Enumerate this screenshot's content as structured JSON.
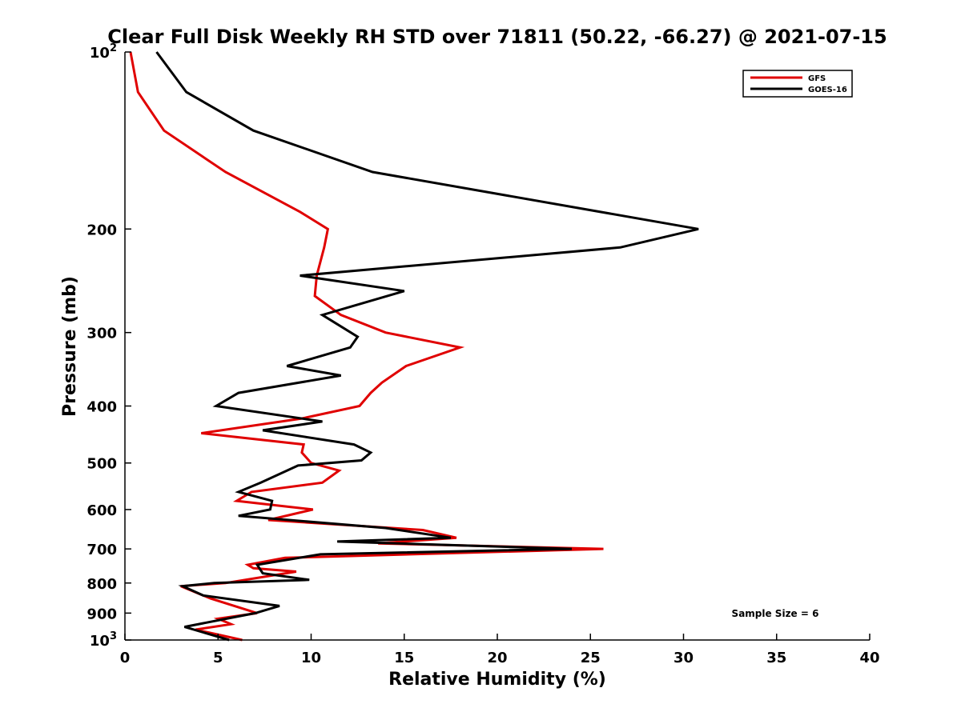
{
  "chart_data": {
    "type": "line",
    "title": "Clear Full Disk Weekly RH STD over 71811 (50.22, -66.27) @ 2021-07-15",
    "xlabel": "Relative Humidity (%)",
    "ylabel": "Pressure (mb)",
    "xlim": [
      0,
      40
    ],
    "ylim": [
      100,
      1000
    ],
    "y_scale": "log",
    "y_reversed": true,
    "grid": false,
    "legend_position": "top-right",
    "x_ticks": [
      0,
      5,
      10,
      15,
      20,
      25,
      30,
      35,
      40
    ],
    "y_ticks": [
      100,
      200,
      300,
      400,
      500,
      600,
      700,
      800,
      900,
      1000
    ],
    "y_tick_labels": {
      "100": {
        "base": "10",
        "exp": "2"
      },
      "200": "200",
      "300": "300",
      "400": "400",
      "500": "500",
      "600": "600",
      "700": "700",
      "800": "800",
      "900": "900",
      "1000": {
        "base": "10",
        "exp": "3"
      }
    },
    "series": [
      {
        "name": "GFS",
        "color": "#e00000",
        "points": [
          [
            0.3,
            100
          ],
          [
            0.7,
            117
          ],
          [
            2.1,
            136
          ],
          [
            5.4,
            160
          ],
          [
            9.4,
            187
          ],
          [
            10.9,
            200
          ],
          [
            10.7,
            215
          ],
          [
            10.3,
            240
          ],
          [
            10.2,
            260
          ],
          [
            11.6,
            280
          ],
          [
            14.0,
            300
          ],
          [
            18.0,
            318
          ],
          [
            15.1,
            342
          ],
          [
            13.8,
            365
          ],
          [
            13.2,
            380
          ],
          [
            12.6,
            400
          ],
          [
            9.5,
            420
          ],
          [
            4.1,
            445
          ],
          [
            9.6,
            465
          ],
          [
            9.5,
            480
          ],
          [
            10.0,
            500
          ],
          [
            11.5,
            515
          ],
          [
            10.6,
            540
          ],
          [
            6.8,
            560
          ],
          [
            6.0,
            580
          ],
          [
            10.1,
            600
          ],
          [
            7.7,
            625
          ],
          [
            16.0,
            650
          ],
          [
            17.8,
            670
          ],
          [
            13.6,
            685
          ],
          [
            25.7,
            700
          ],
          [
            8.6,
            725
          ],
          [
            6.6,
            745
          ],
          [
            6.9,
            755
          ],
          [
            9.2,
            765
          ],
          [
            5.4,
            800
          ],
          [
            3.0,
            810
          ],
          [
            4.6,
            850
          ],
          [
            7.1,
            900
          ],
          [
            5.0,
            920
          ],
          [
            5.7,
            940
          ],
          [
            3.8,
            960
          ],
          [
            6.3,
            1000
          ]
        ]
      },
      {
        "name": "GOES-16",
        "color": "#000000",
        "points": [
          [
            1.7,
            100
          ],
          [
            3.3,
            117
          ],
          [
            6.9,
            136
          ],
          [
            13.3,
            160
          ],
          [
            30.8,
            200
          ],
          [
            26.6,
            215
          ],
          [
            9.4,
            240
          ],
          [
            15.0,
            255
          ],
          [
            10.6,
            280
          ],
          [
            12.5,
            305
          ],
          [
            12.1,
            318
          ],
          [
            8.7,
            342
          ],
          [
            11.6,
            355
          ],
          [
            6.1,
            380
          ],
          [
            4.9,
            400
          ],
          [
            10.6,
            425
          ],
          [
            7.4,
            440
          ],
          [
            12.3,
            465
          ],
          [
            13.2,
            480
          ],
          [
            12.7,
            495
          ],
          [
            9.3,
            505
          ],
          [
            7.3,
            540
          ],
          [
            6.1,
            560
          ],
          [
            7.9,
            580
          ],
          [
            7.8,
            600
          ],
          [
            6.1,
            615
          ],
          [
            14.0,
            645
          ],
          [
            17.5,
            670
          ],
          [
            11.4,
            680
          ],
          [
            24.0,
            700
          ],
          [
            10.5,
            715
          ],
          [
            7.1,
            745
          ],
          [
            7.4,
            770
          ],
          [
            9.9,
            790
          ],
          [
            4.8,
            800
          ],
          [
            3.1,
            810
          ],
          [
            4.2,
            840
          ],
          [
            8.3,
            875
          ],
          [
            7.0,
            900
          ],
          [
            3.2,
            950
          ],
          [
            5.6,
            1000
          ]
        ]
      }
    ],
    "annotations": [
      {
        "text": "Sample Size = 6",
        "x": 35.0,
        "y": 900
      }
    ]
  }
}
